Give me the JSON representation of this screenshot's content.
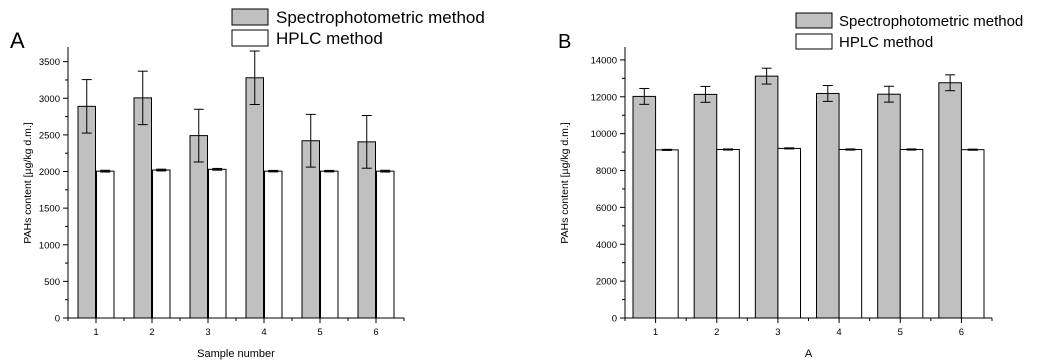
{
  "chart_data": [
    {
      "panel_label": "A",
      "type": "bar",
      "title": "",
      "xlabel": "Sample number",
      "ylabel": "PAHs content [µg/kg d.m.]",
      "categories": [
        "1",
        "2",
        "3",
        "4",
        "5",
        "6"
      ],
      "ylim": [
        0,
        3700
      ],
      "yticks": [
        0,
        500,
        1000,
        1500,
        2000,
        2500,
        3000,
        3500
      ],
      "yticklabels": [
        "0",
        "500",
        "1000",
        "1500",
        "2000",
        "2500",
        "3000",
        "3500"
      ],
      "legend_position": "top, above plot",
      "grid": false,
      "series": [
        {
          "name": "Spectrophotometric method",
          "color": "#c0c0c0",
          "values": [
            2890,
            3005,
            2490,
            3280,
            2420,
            2405
          ],
          "errors": [
            365,
            365,
            360,
            365,
            360,
            360
          ]
        },
        {
          "name": "HPLC method",
          "color": "#ffffff",
          "values": [
            2005,
            2020,
            2030,
            2005,
            2005,
            2005
          ],
          "errors": [
            12,
            12,
            12,
            10,
            10,
            12
          ]
        }
      ]
    },
    {
      "panel_label": "B",
      "type": "bar",
      "title": "",
      "xlabel": "A",
      "ylabel": "PAHs content [µg/kg d.m.]",
      "categories": [
        "1",
        "2",
        "3",
        "4",
        "5",
        "6"
      ],
      "ylim": [
        0,
        14700
      ],
      "yticks": [
        0,
        2000,
        4000,
        6000,
        8000,
        10000,
        12000,
        14000
      ],
      "yticklabels": [
        "0",
        "2000",
        "4000",
        "6000",
        "8000",
        "10000",
        "12000",
        "14000"
      ],
      "legend_position": "top, above plot",
      "grid": false,
      "series": [
        {
          "name": "Spectrophotometric method",
          "color": "#c0c0c0",
          "values": [
            12020,
            12130,
            13120,
            12180,
            12140,
            12760
          ],
          "errors": [
            430,
            430,
            430,
            430,
            430,
            430
          ]
        },
        {
          "name": "HPLC method",
          "color": "#ffffff",
          "values": [
            9120,
            9140,
            9200,
            9140,
            9140,
            9130
          ],
          "errors": [
            30,
            30,
            30,
            30,
            30,
            30
          ]
        }
      ]
    }
  ]
}
